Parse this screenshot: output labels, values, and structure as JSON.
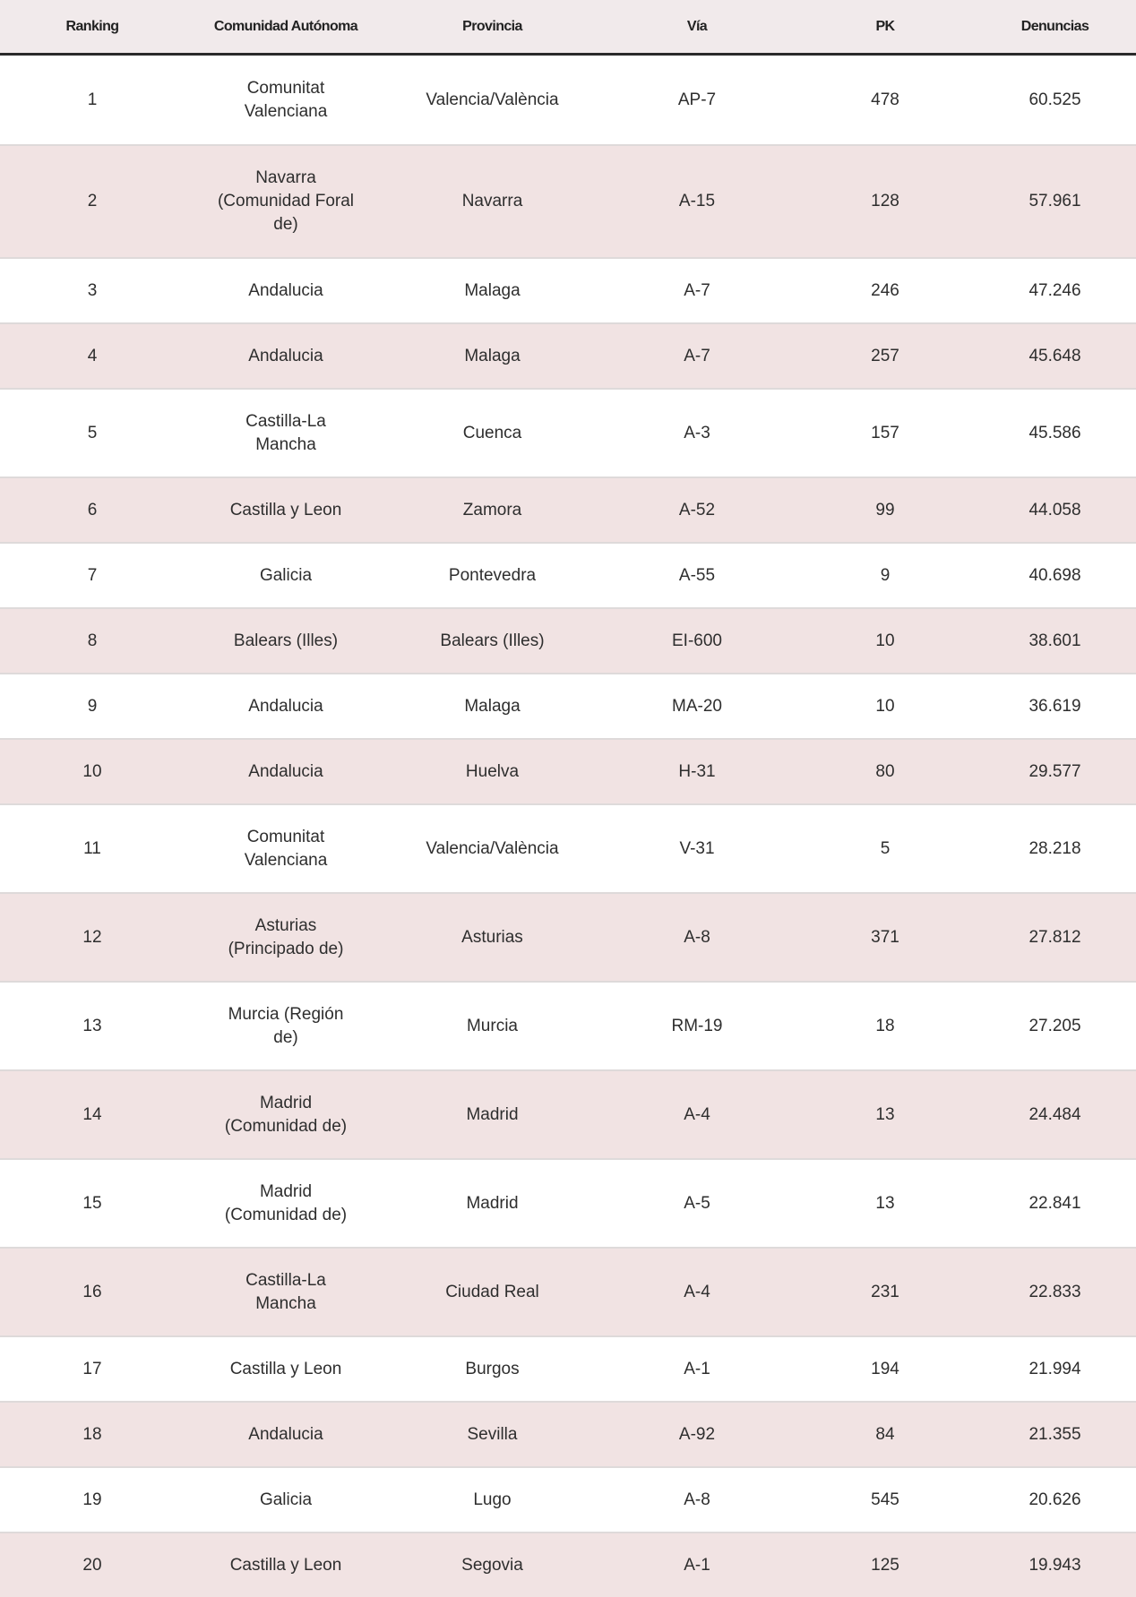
{
  "columns": [
    "Ranking",
    "Comunidad Autónoma",
    "Provincia",
    "Vía",
    "PK",
    "Denuncias"
  ],
  "colors": {
    "header_bg": "#f1eaeb",
    "alt_row_bg": "#f1e3e3",
    "header_border": "#2a2a2a"
  },
  "rows": [
    {
      "ranking": "1",
      "comunidad": "Comunitat Valenciana",
      "provincia": "Valencia/València",
      "via": "AP-7",
      "pk": "478",
      "denuncias": "60.525"
    },
    {
      "ranking": "2",
      "comunidad": "Navarra (Comunidad Foral de)",
      "provincia": "Navarra",
      "via": "A-15",
      "pk": "128",
      "denuncias": "57.961"
    },
    {
      "ranking": "3",
      "comunidad": "Andalucia",
      "provincia": "Malaga",
      "via": "A-7",
      "pk": "246",
      "denuncias": "47.246"
    },
    {
      "ranking": "4",
      "comunidad": "Andalucia",
      "provincia": "Malaga",
      "via": "A-7",
      "pk": "257",
      "denuncias": "45.648"
    },
    {
      "ranking": "5",
      "comunidad": "Castilla-La Mancha",
      "provincia": "Cuenca",
      "via": "A-3",
      "pk": "157",
      "denuncias": "45.586"
    },
    {
      "ranking": "6",
      "comunidad": "Castilla y Leon",
      "provincia": "Zamora",
      "via": "A-52",
      "pk": "99",
      "denuncias": "44.058"
    },
    {
      "ranking": "7",
      "comunidad": "Galicia",
      "provincia": "Pontevedra",
      "via": "A-55",
      "pk": "9",
      "denuncias": "40.698"
    },
    {
      "ranking": "8",
      "comunidad": "Balears (Illes)",
      "provincia": "Balears (Illes)",
      "via": "EI-600",
      "pk": "10",
      "denuncias": "38.601"
    },
    {
      "ranking": "9",
      "comunidad": "Andalucia",
      "provincia": "Malaga",
      "via": "MA-20",
      "pk": "10",
      "denuncias": "36.619"
    },
    {
      "ranking": "10",
      "comunidad": "Andalucia",
      "provincia": "Huelva",
      "via": "H-31",
      "pk": "80",
      "denuncias": "29.577"
    },
    {
      "ranking": "11",
      "comunidad": "Comunitat Valenciana",
      "provincia": "Valencia/València",
      "via": "V-31",
      "pk": "5",
      "denuncias": "28.218"
    },
    {
      "ranking": "12",
      "comunidad": "Asturias (Principado de)",
      "provincia": "Asturias",
      "via": "A-8",
      "pk": "371",
      "denuncias": "27.812"
    },
    {
      "ranking": "13",
      "comunidad": "Murcia (Región de)",
      "provincia": "Murcia",
      "via": "RM-19",
      "pk": "18",
      "denuncias": "27.205"
    },
    {
      "ranking": "14",
      "comunidad": "Madrid (Comunidad de)",
      "provincia": "Madrid",
      "via": "A-4",
      "pk": "13",
      "denuncias": "24.484"
    },
    {
      "ranking": "15",
      "comunidad": "Madrid (Comunidad de)",
      "provincia": "Madrid",
      "via": "A-5",
      "pk": "13",
      "denuncias": "22.841"
    },
    {
      "ranking": "16",
      "comunidad": "Castilla-La Mancha",
      "provincia": "Ciudad Real",
      "via": "A-4",
      "pk": "231",
      "denuncias": "22.833"
    },
    {
      "ranking": "17",
      "comunidad": "Castilla y Leon",
      "provincia": "Burgos",
      "via": "A-1",
      "pk": "194",
      "denuncias": "21.994"
    },
    {
      "ranking": "18",
      "comunidad": "Andalucia",
      "provincia": "Sevilla",
      "via": "A-92",
      "pk": "84",
      "denuncias": "21.355"
    },
    {
      "ranking": "19",
      "comunidad": "Galicia",
      "provincia": "Lugo",
      "via": "A-8",
      "pk": "545",
      "denuncias": "20.626"
    },
    {
      "ranking": "20",
      "comunidad": "Castilla y Leon",
      "provincia": "Segovia",
      "via": "A-1",
      "pk": "125",
      "denuncias": "19.943"
    }
  ]
}
